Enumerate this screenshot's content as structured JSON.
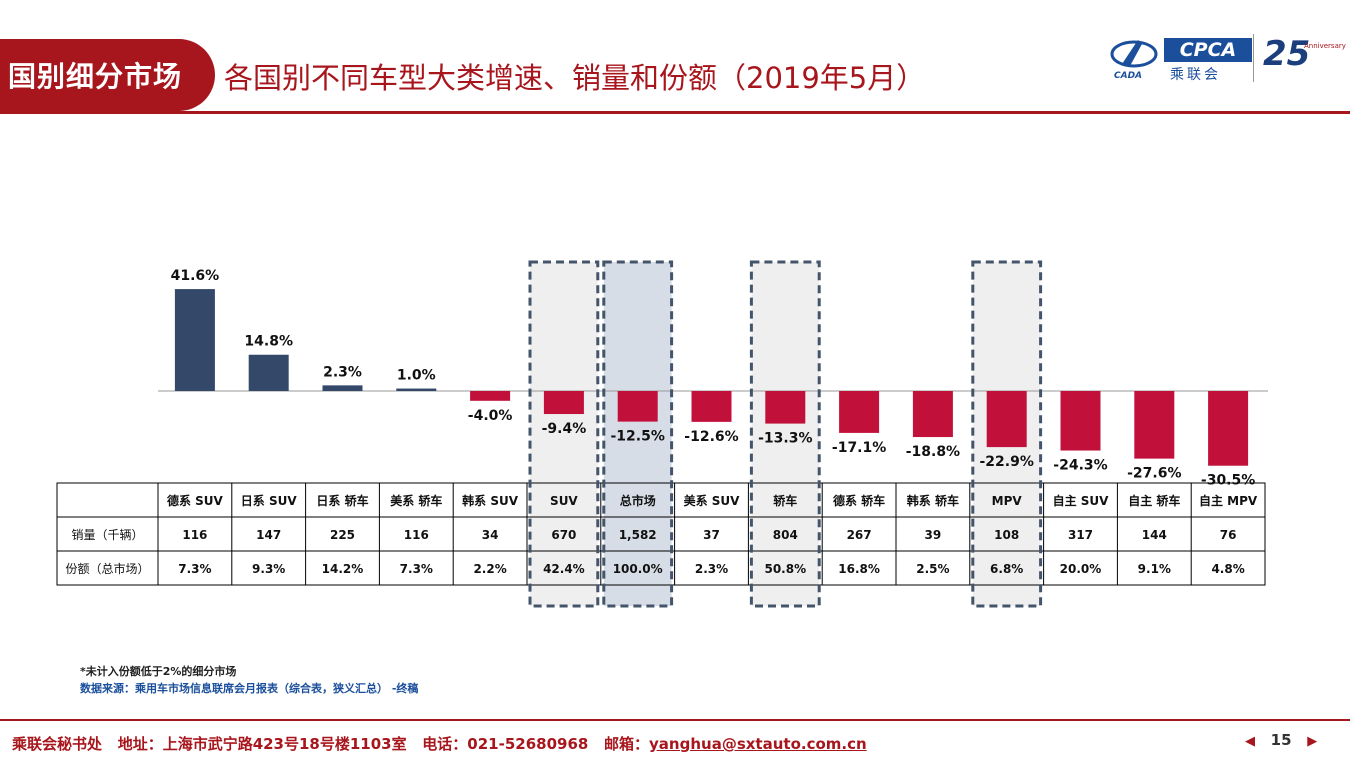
{
  "header": {
    "tag": "国别细分市场",
    "title": "各国别不同车型大类增速、销量和份额（2019年5月）"
  },
  "logo": {
    "cpca": "CPCA",
    "cpca_sub": "乘联会",
    "cada": "CADA",
    "anniversary_number": "25",
    "anniversary_text": "Anniversary"
  },
  "chart_data": {
    "type": "bar",
    "categories": [
      "德系 SUV",
      "日系 SUV",
      "日系 轿车",
      "美系 轿车",
      "韩系 SUV",
      "SUV",
      "总市场",
      "美系 SUV",
      "轿车",
      "德系 轿车",
      "韩系 轿车",
      "MPV",
      "自主 SUV",
      "自主 轿车",
      "自主 MPV"
    ],
    "values": [
      41.6,
      14.8,
      2.3,
      1.0,
      -4.0,
      -9.4,
      -12.5,
      -12.6,
      -13.3,
      -17.1,
      -18.8,
      -22.9,
      -24.3,
      -27.6,
      -30.5
    ],
    "value_labels": [
      "41.6%",
      "14.8%",
      "2.3%",
      "1.0%",
      "-4.0%",
      "-9.4%",
      "-12.5%",
      "-12.6%",
      "-13.3%",
      "-17.1%",
      "-18.8%",
      "-22.9%",
      "-24.3%",
      "-27.6%",
      "-30.5%"
    ],
    "highlighted": [
      "SUV",
      "总市场",
      "轿车",
      "MPV"
    ],
    "colors": {
      "positive": "#34496a",
      "negative": "#c1103a",
      "highlight_fill": "#efefef",
      "total_fill": "#d6dde6",
      "highlight_border": "#44546a"
    },
    "table": {
      "rows": [
        {
          "label": "销量（千辆）",
          "values": [
            "116",
            "147",
            "225",
            "116",
            "34",
            "670",
            "1,582",
            "37",
            "804",
            "267",
            "39",
            "108",
            "317",
            "144",
            "76"
          ]
        },
        {
          "label": "份额（总市场）",
          "values": [
            "7.3%",
            "9.3%",
            "14.2%",
            "7.3%",
            "2.2%",
            "42.4%",
            "100.0%",
            "2.3%",
            "50.8%",
            "16.8%",
            "2.5%",
            "6.8%",
            "20.0%",
            "9.1%",
            "4.8%"
          ]
        }
      ]
    }
  },
  "notes": {
    "note": "*未计入份额低于2%的细分市场",
    "source": "数据来源：乘用车市场信息联席会月报表（综合表，狭义汇总） -终稿"
  },
  "footer": {
    "org": "乘联会秘书处",
    "address": "地址：上海市武宁路423号18号楼1103室",
    "phone": "电话：021-52680968",
    "email_label": "邮箱：",
    "email": "yanghua@sxtauto.com.cn",
    "page": "15"
  }
}
